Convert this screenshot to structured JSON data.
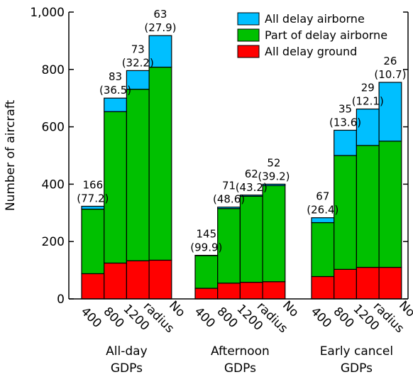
{
  "chart_data": {
    "type": "bar",
    "stacked": true,
    "ylabel": "Number of aircraft",
    "ylim": [
      0,
      1000
    ],
    "yticks": [
      "0",
      "200",
      "400",
      "600",
      "800",
      "1,000"
    ],
    "colors": {
      "ground": "#ff0000",
      "part": "#00c000",
      "airborne": "#00bfff"
    },
    "legend": {
      "placement": "top-right",
      "entries": [
        {
          "key": "airborne",
          "label": "All delay airborne"
        },
        {
          "key": "part",
          "label": "Part of delay airborne"
        },
        {
          "key": "ground",
          "label": "All delay ground"
        }
      ]
    },
    "groups": [
      {
        "label_line1": "All-day",
        "label_line2": "GDPs",
        "bars": [
          {
            "category": "400",
            "ground": 88,
            "part": 225,
            "airborne": 10,
            "label_top": "166",
            "label_bottom": "(77.2)"
          },
          {
            "category": "800",
            "ground": 125,
            "part": 528,
            "airborne": 47,
            "label_top": "83",
            "label_bottom": "(36.5)"
          },
          {
            "category": "1200",
            "ground": 133,
            "part": 598,
            "airborne": 65,
            "label_top": "73",
            "label_bottom": "(32.2)"
          },
          {
            "category": "radius",
            "ground": 135,
            "part": 673,
            "airborne": 110,
            "label_top": "63",
            "label_bottom": "(27.9)"
          }
        ]
      },
      {
        "label_line1": "Afternoon",
        "label_line2": "GDPs",
        "bars": [
          {
            "category": "400",
            "ground": 37,
            "part": 114,
            "airborne": 1,
            "label_top": "145",
            "label_bottom": "(99.9)"
          },
          {
            "category": "800",
            "ground": 55,
            "part": 260,
            "airborne": 5,
            "label_top": "71",
            "label_bottom": "(48.6)"
          },
          {
            "category": "1200",
            "ground": 58,
            "part": 300,
            "airborne": 4,
            "label_top": "62",
            "label_bottom": "(43.2)"
          },
          {
            "category": "radius",
            "ground": 60,
            "part": 335,
            "airborne": 5,
            "label_top": "52",
            "label_bottom": "(39.2)"
          }
        ]
      },
      {
        "label_line1": "Early cancel",
        "label_line2": "GDPs",
        "bars": [
          {
            "category": "400",
            "ground": 78,
            "part": 188,
            "airborne": 17,
            "label_top": "67",
            "label_bottom": "(26.4)"
          },
          {
            "category": "800",
            "ground": 103,
            "part": 397,
            "airborne": 88,
            "label_top": "35",
            "label_bottom": "(13.6)"
          },
          {
            "category": "1200",
            "ground": 110,
            "part": 425,
            "airborne": 127,
            "label_top": "29",
            "label_bottom": "(12.1)"
          },
          {
            "category": "radius",
            "ground": 110,
            "part": 440,
            "airborne": 205,
            "label_top": "26",
            "label_bottom": "(10.7)"
          }
        ]
      }
    ],
    "x_tick_labels": [
      "400",
      "800",
      "1200",
      "radius",
      "No"
    ]
  }
}
